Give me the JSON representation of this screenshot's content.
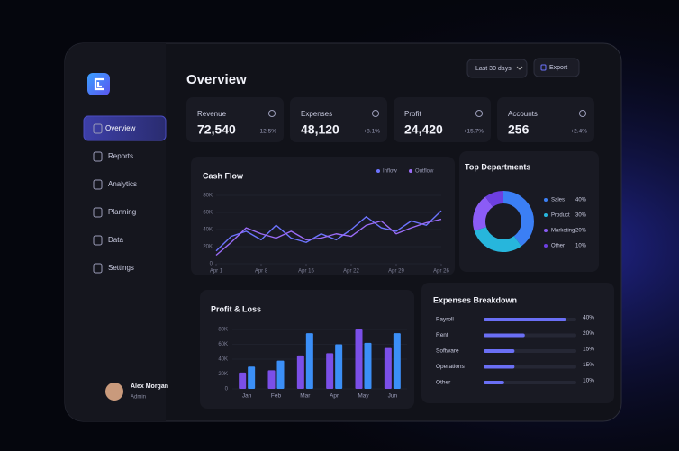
{
  "sidebar": {
    "nav": [
      "Overview",
      "Reports",
      "Analytics",
      "Planning",
      "Data",
      "Settings"
    ],
    "active": 0,
    "user": {
      "name": "Alex Morgan",
      "role": "Admin"
    }
  },
  "header": {
    "title": "Overview",
    "range": "Last 30 days",
    "export": "Export"
  },
  "kpis": [
    {
      "label": "Revenue",
      "value": "72,540",
      "change": "+12.5%"
    },
    {
      "label": "Expenses",
      "value": "48,120",
      "change": "+8.1%"
    },
    {
      "label": "Profit",
      "value": "24,420",
      "change": "+15.7%"
    },
    {
      "label": "Accounts",
      "value": "256",
      "change": "+2.4%"
    }
  ],
  "cash_flow": {
    "type": "line",
    "title": "Cash Flow",
    "x": [
      0,
      2,
      4,
      6,
      8,
      10,
      12,
      14,
      16,
      18,
      20,
      22,
      24,
      26,
      28,
      30
    ],
    "xlim": [
      0,
      30
    ],
    "xticks": [
      {
        "value": 0,
        "label": "Apr 1"
      },
      {
        "value": 6,
        "label": "Apr 8"
      },
      {
        "value": 12,
        "label": "Apr 15"
      },
      {
        "value": 18,
        "label": "Apr 22"
      },
      {
        "value": 24,
        "label": "Apr 29"
      },
      {
        "value": 30,
        "label": "Apr 26"
      }
    ],
    "ylim": [
      0,
      80000
    ],
    "yticks": [
      {
        "value": 0,
        "label": "0"
      },
      {
        "value": 20000,
        "label": "20K"
      },
      {
        "value": 40000,
        "label": "40K"
      },
      {
        "value": 60000,
        "label": "60K"
      },
      {
        "value": 80000,
        "label": "80K"
      }
    ],
    "series": [
      {
        "name": "Inflow",
        "color": "#6d74ff",
        "values": [
          15000,
          32000,
          38000,
          28000,
          45000,
          30000,
          25000,
          35000,
          28000,
          40000,
          55000,
          42000,
          38000,
          50000,
          45000,
          62000
        ]
      },
      {
        "name": "Outflow",
        "color": "#9b6cf7",
        "values": [
          10000,
          25000,
          42000,
          35000,
          30000,
          38000,
          28000,
          30000,
          35000,
          32000,
          45000,
          50000,
          35000,
          42000,
          48000,
          52000
        ]
      }
    ]
  },
  "top_departments": {
    "type": "pie",
    "title": "Top Departments",
    "categories": [
      "Sales",
      "Product",
      "Marketing",
      "Other"
    ],
    "values": [
      40,
      30,
      20,
      10
    ],
    "value_labels": [
      "40%",
      "30%",
      "20%",
      "10%"
    ],
    "colors": [
      "#3b7ff5",
      "#27b6dc",
      "#8b5cf6",
      "#6d3fe0"
    ]
  },
  "profit_loss": {
    "type": "bar",
    "title": "Profit & Loss",
    "categories": [
      "Jan",
      "Feb",
      "Mar",
      "Apr",
      "May",
      "Jun"
    ],
    "ylim": [
      0,
      80000
    ],
    "yticks": [
      {
        "value": 0,
        "label": "0"
      },
      {
        "value": 20000,
        "label": "20K"
      },
      {
        "value": 40000,
        "label": "40K"
      },
      {
        "value": 60000,
        "label": "60K"
      },
      {
        "value": 80000,
        "label": "80K"
      }
    ],
    "series": [
      {
        "color": "#7b4fe8",
        "values": [
          22000,
          25000,
          45000,
          48000,
          80000,
          55000
        ]
      },
      {
        "color": "#3b8ff7",
        "values": [
          30000,
          38000,
          75000,
          60000,
          62000,
          75000
        ]
      }
    ]
  },
  "expenses": {
    "type": "hbar",
    "title": "Expenses Breakdown",
    "categories": [
      "Payroll",
      "Rent",
      "Software",
      "Operations",
      "Other"
    ],
    "values": [
      40,
      20,
      15,
      15,
      10
    ],
    "value_labels": [
      "40%",
      "20%",
      "15%",
      "15%",
      "10%"
    ],
    "xlim": [
      0,
      45
    ],
    "color": "#6a6ff5"
  }
}
